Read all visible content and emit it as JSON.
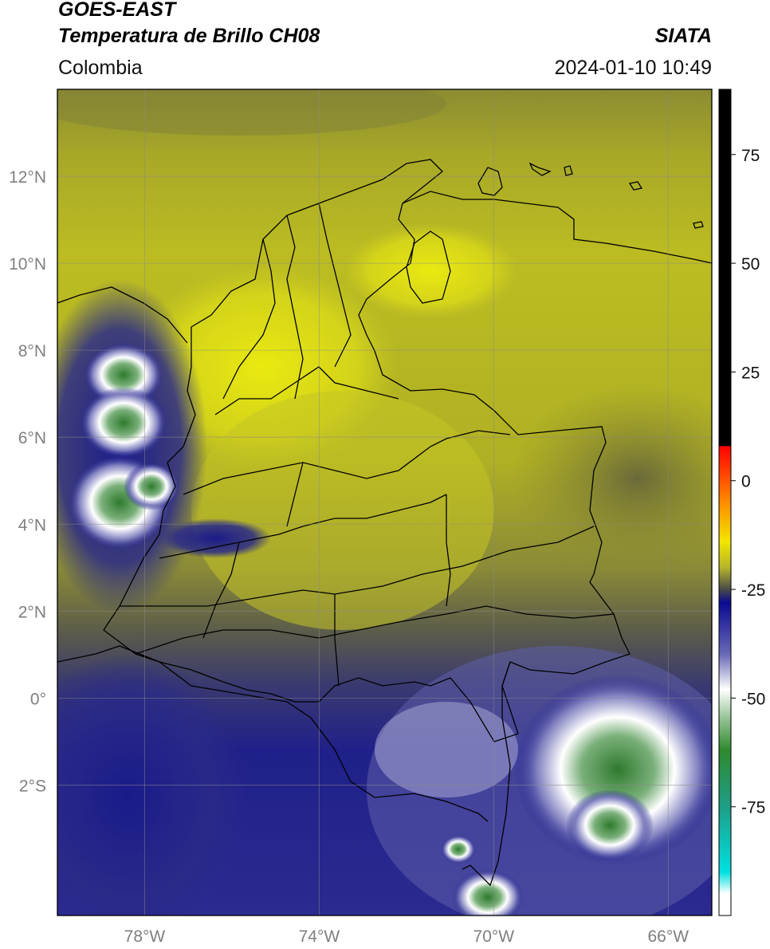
{
  "header": {
    "satellite": "GOES-EAST",
    "product": "Temperatura de Brillo CH08",
    "organization": "SIATA",
    "region": "Colombia",
    "datetime": "2024-01-10 10:49"
  },
  "map": {
    "lon_range": [
      -80,
      -65
    ],
    "lat_range": [
      -5,
      14
    ],
    "lon_ticks": [
      {
        "value": -78,
        "label": "78°W"
      },
      {
        "value": -74,
        "label": "74°W"
      },
      {
        "value": -70,
        "label": "70°W"
      },
      {
        "value": -66,
        "label": "66°W"
      }
    ],
    "lat_ticks": [
      {
        "value": 12,
        "label": "12°N"
      },
      {
        "value": 10,
        "label": "10°N"
      },
      {
        "value": 8,
        "label": "8°N"
      },
      {
        "value": 6,
        "label": "6°N"
      },
      {
        "value": 4,
        "label": "4°N"
      },
      {
        "value": 2,
        "label": "2°N"
      },
      {
        "value": 0,
        "label": "0°"
      },
      {
        "value": -2,
        "label": "2°S"
      }
    ],
    "gridlines": true
  },
  "colorbar": {
    "range": [
      -100,
      90
    ],
    "ticks": [
      {
        "value": 75,
        "label": "75"
      },
      {
        "value": 50,
        "label": "50"
      },
      {
        "value": 25,
        "label": "25"
      },
      {
        "value": 0,
        "label": "0"
      },
      {
        "value": -25,
        "label": "-25"
      },
      {
        "value": -50,
        "label": "-50"
      },
      {
        "value": -75,
        "label": "-75"
      }
    ],
    "color_stops": [
      {
        "value": 90,
        "color": "#000000"
      },
      {
        "value": 8,
        "color": "#000000"
      },
      {
        "value": 7.9,
        "color": "#ff0000"
      },
      {
        "value": -5,
        "color": "#ff8c00"
      },
      {
        "value": -14,
        "color": "#f2e600"
      },
      {
        "value": -20,
        "color": "#b5b52a"
      },
      {
        "value": -25,
        "color": "#4a4a4a"
      },
      {
        "value": -28,
        "color": "#0a0a90"
      },
      {
        "value": -40,
        "color": "#6a6ab8"
      },
      {
        "value": -48,
        "color": "#ffffff"
      },
      {
        "value": -55,
        "color": "#90c090"
      },
      {
        "value": -62,
        "color": "#2e8a2e"
      },
      {
        "value": -75,
        "color": "#1e9e88"
      },
      {
        "value": -90,
        "color": "#00e0e0"
      },
      {
        "value": -95,
        "color": "#ffffff"
      },
      {
        "value": -100,
        "color": "#ffffff"
      }
    ]
  },
  "colors": {
    "warm_dry": "#c8c81e",
    "bright_dry": "#e6e614",
    "mid": "#5a5a4a",
    "cold": "#1e1e8c",
    "very_cold": "#ffffff",
    "coldest": "#2e8a2e"
  }
}
